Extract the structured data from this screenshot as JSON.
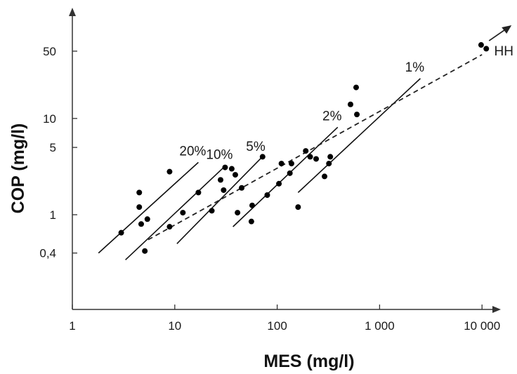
{
  "chart_data": {
    "type": "scatter",
    "title": "",
    "xlabel": "MES (mg/l)",
    "ylabel": "COP (mg/l)",
    "x_scale": "log",
    "y_scale": "log",
    "xlim": [
      1,
      10000
    ],
    "ylim": [
      0.15,
      110
    ],
    "grid": false,
    "legend": "none",
    "x_ticks": [
      {
        "value": 1,
        "label": "1"
      },
      {
        "value": 10,
        "label": "10"
      },
      {
        "value": 100,
        "label": "100"
      },
      {
        "value": 1000,
        "label": "1 000"
      },
      {
        "value": 10000,
        "label": "10 000"
      }
    ],
    "y_ticks": [
      {
        "value": 0.4,
        "label": "0,4"
      },
      {
        "value": 1,
        "label": "1"
      },
      {
        "value": 5,
        "label": "5"
      },
      {
        "value": 10,
        "label": "10"
      },
      {
        "value": 50,
        "label": "50"
      }
    ],
    "points": [
      {
        "x": 3,
        "y": 0.65
      },
      {
        "x": 4.5,
        "y": 1.7
      },
      {
        "x": 4.5,
        "y": 1.2
      },
      {
        "x": 4.7,
        "y": 0.8
      },
      {
        "x": 5.1,
        "y": 0.42
      },
      {
        "x": 5.4,
        "y": 0.9
      },
      {
        "x": 8.9,
        "y": 2.8
      },
      {
        "x": 8.9,
        "y": 0.75
      },
      {
        "x": 12,
        "y": 1.05
      },
      {
        "x": 17,
        "y": 1.7
      },
      {
        "x": 23,
        "y": 1.1
      },
      {
        "x": 28,
        "y": 2.3
      },
      {
        "x": 30,
        "y": 1.8
      },
      {
        "x": 31,
        "y": 3.1
      },
      {
        "x": 36,
        "y": 3
      },
      {
        "x": 39,
        "y": 2.6
      },
      {
        "x": 41,
        "y": 1.05
      },
      {
        "x": 45,
        "y": 1.9
      },
      {
        "x": 72,
        "y": 4
      },
      {
        "x": 56,
        "y": 0.85
      },
      {
        "x": 57,
        "y": 1.25
      },
      {
        "x": 80,
        "y": 1.6
      },
      {
        "x": 104,
        "y": 2.1
      },
      {
        "x": 110,
        "y": 3.4
      },
      {
        "x": 133,
        "y": 2.7
      },
      {
        "x": 138,
        "y": 3.4
      },
      {
        "x": 160,
        "y": 1.2
      },
      {
        "x": 190,
        "y": 4.6
      },
      {
        "x": 210,
        "y": 4
      },
      {
        "x": 240,
        "y": 3.8
      },
      {
        "x": 290,
        "y": 2.5
      },
      {
        "x": 320,
        "y": 3.4
      },
      {
        "x": 330,
        "y": 4
      },
      {
        "x": 520,
        "y": 14
      },
      {
        "x": 590,
        "y": 21
      },
      {
        "x": 600,
        "y": 11
      },
      {
        "x": 9800,
        "y": 58
      },
      {
        "x": 11000,
        "y": 53
      }
    ],
    "ratio_lines": [
      {
        "label": "20%",
        "x": [
          1.8,
          17
        ],
        "y": [
          0.4,
          3.5
        ]
      },
      {
        "label": "10%",
        "x": [
          3.3,
          31
        ],
        "y": [
          0.34,
          3.2
        ]
      },
      {
        "label": "5%",
        "x": [
          10.5,
          70
        ],
        "y": [
          0.5,
          3.9
        ]
      },
      {
        "label": "2%",
        "x": [
          37,
          390
        ],
        "y": [
          0.75,
          8.1
        ]
      },
      {
        "label": "1%",
        "x": [
          160,
          2500
        ],
        "y": [
          1.7,
          26
        ]
      }
    ],
    "trend_line": {
      "style": "dashed",
      "x": [
        5.5,
        10000
      ],
      "y": [
        0.55,
        46
      ]
    },
    "annotations": [
      {
        "text": "HH",
        "x": 14000,
        "y": 50
      }
    ]
  }
}
